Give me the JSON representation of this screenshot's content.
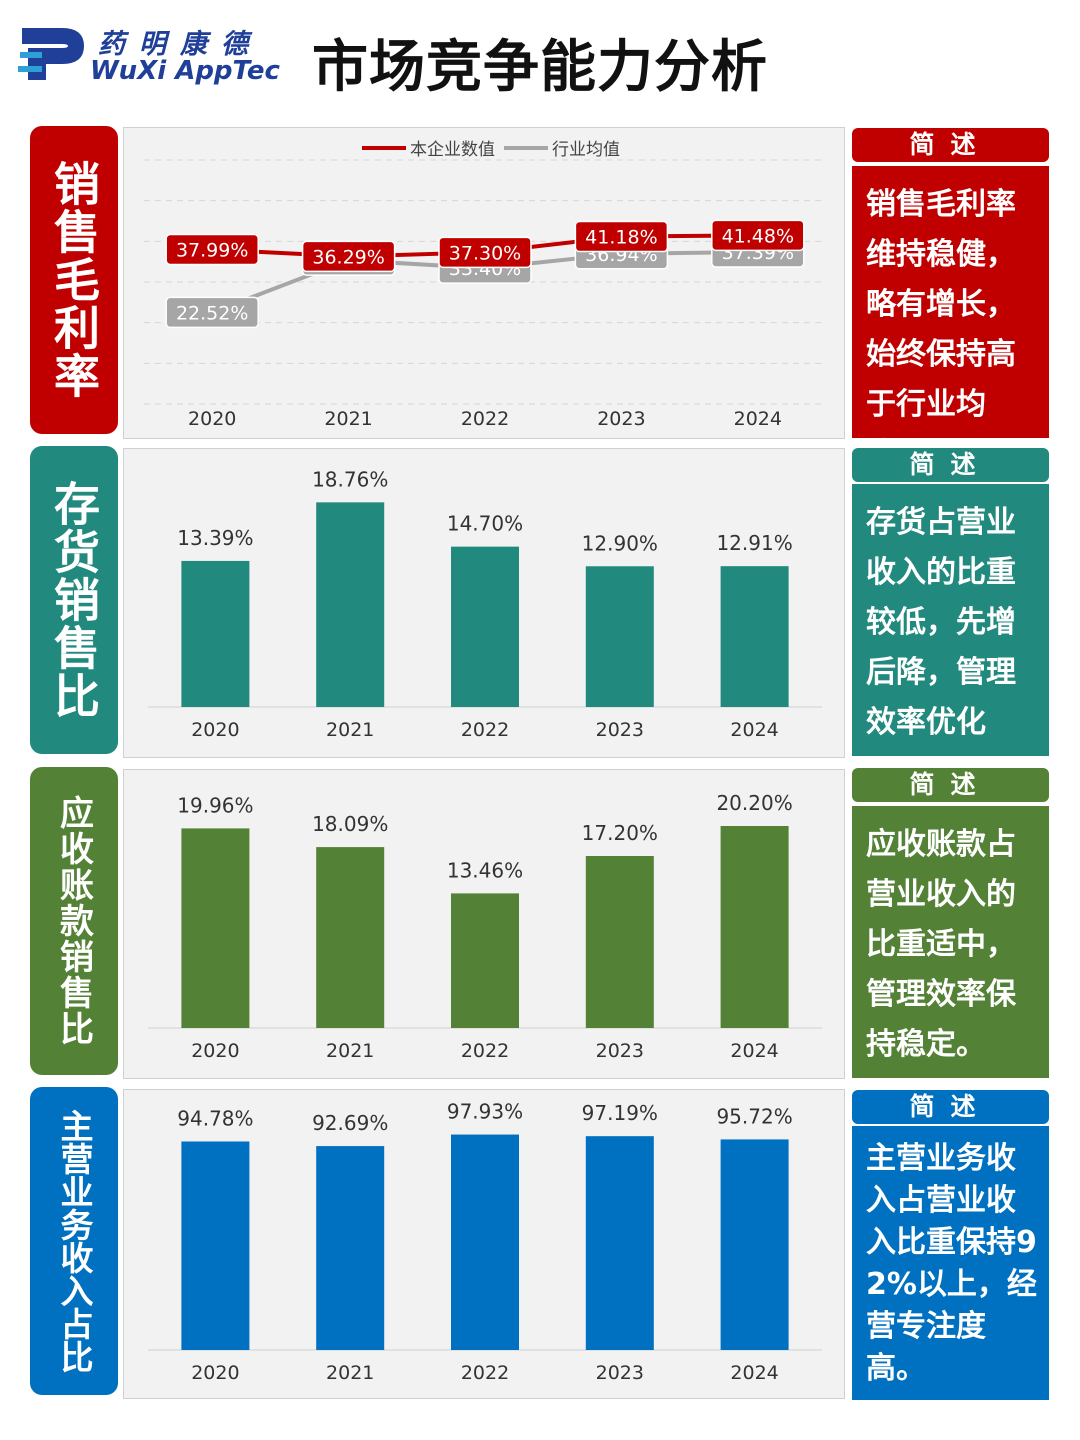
{
  "header": {
    "logo_cn": "药明康德",
    "logo_en": "WuXi AppTec",
    "title": "市场竞争能力分析"
  },
  "colors": {
    "red": "#c00000",
    "teal": "#21897e",
    "green": "#538135",
    "blue": "#0070c0",
    "gray": "#a6a6a6"
  },
  "sections": [
    {
      "label": "销售毛利率",
      "summary_head": "简述",
      "summary": "销售毛利率维持稳健，略有增长，始终保持高于行业均值。"
    },
    {
      "label": "存货销售比",
      "summary_head": "简述",
      "summary": "存货占营业收入的比重较低，先增后降，管理效率优化中。"
    },
    {
      "label": "应收账款销售比",
      "summary_head": "简述",
      "summary": "应收账款占营业收入的比重适中，管理效率保持稳定。"
    },
    {
      "label": "主营业务收入占比",
      "summary_head": "简述",
      "summary": "主营业务收入占营业收入比重保持92%以上，经营专注度高。"
    }
  ],
  "chart_data": [
    {
      "type": "line",
      "categories": [
        "2020",
        "2021",
        "2022",
        "2023",
        "2024"
      ],
      "series": [
        {
          "name": "本企业数值",
          "values": [
            37.99,
            36.29,
            37.3,
            41.18,
            41.48
          ],
          "labels": [
            "37.99%",
            "36.29%",
            "37.30%",
            "41.18%",
            "41.48%"
          ],
          "color": "#c00000"
        },
        {
          "name": "行业均值",
          "values": [
            22.52,
            35.37,
            33.4,
            36.94,
            37.39
          ],
          "labels": [
            "22.52%",
            "35.37%",
            "33.40%",
            "36.94%",
            "37.39%"
          ],
          "color": "#a6a6a6"
        }
      ],
      "legend": "top-center",
      "grid": true,
      "ylim": [
        0,
        60
      ]
    },
    {
      "type": "bar",
      "categories": [
        "2020",
        "2021",
        "2022",
        "2023",
        "2024"
      ],
      "values": [
        13.39,
        18.76,
        14.7,
        12.9,
        12.91
      ],
      "labels": [
        "13.39%",
        "18.76%",
        "14.70%",
        "12.90%",
        "12.91%"
      ],
      "color": "#21897e",
      "ylim": [
        0,
        22
      ]
    },
    {
      "type": "bar",
      "categories": [
        "2020",
        "2021",
        "2022",
        "2023",
        "2024"
      ],
      "values": [
        19.96,
        18.09,
        13.46,
        17.2,
        20.2
      ],
      "labels": [
        "19.96%",
        "18.09%",
        "13.46%",
        "17.20%",
        "20.20%"
      ],
      "color": "#538135",
      "ylim": [
        0,
        24
      ]
    },
    {
      "type": "bar",
      "categories": [
        "2020",
        "2021",
        "2022",
        "2023",
        "2024"
      ],
      "values": [
        94.78,
        92.69,
        97.93,
        97.19,
        95.72
      ],
      "labels": [
        "94.78%",
        "92.69%",
        "97.93%",
        "97.19%",
        "95.72%"
      ],
      "color": "#0070c0",
      "ylim": [
        0,
        110
      ]
    }
  ]
}
